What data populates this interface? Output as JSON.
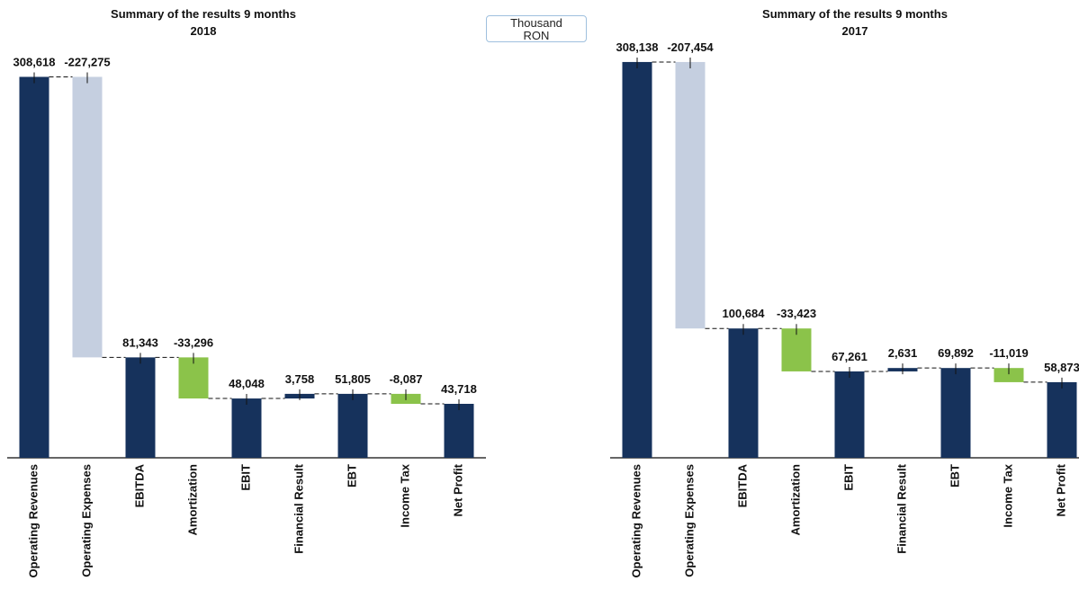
{
  "unit": "Thousand RON",
  "chart_data": [
    {
      "type": "waterfall",
      "title": "Summary of the results 9 months",
      "subtitle": "2018",
      "categories": [
        "Operating Revenues",
        "Operating Expenses",
        "EBITDA",
        "Amortization",
        "EBIT",
        "Financial Result",
        "EBT",
        "Income Tax",
        "Net Profit"
      ],
      "values": [
        308618,
        -227275,
        81343,
        -33296,
        48048,
        3758,
        51805,
        -8087,
        43718
      ],
      "value_labels": [
        "308,618",
        "-227,275",
        "81,343",
        "-33,296",
        "48,048",
        "3,758",
        "51,805",
        "-8,087",
        "43,718"
      ],
      "totals": [
        true,
        false,
        true,
        false,
        true,
        false,
        true,
        false,
        true
      ],
      "colors": [
        "#16325c",
        "#c5cfe0",
        "#16325c",
        "#8bc34a",
        "#16325c",
        "#16325c",
        "#16325c",
        "#8bc34a",
        "#16325c"
      ],
      "ylim": [
        0,
        333000
      ]
    },
    {
      "type": "waterfall",
      "title": "Summary of the results 9 months",
      "subtitle": "2017",
      "categories": [
        "Operating Revenues",
        "Operating Expenses",
        "EBITDA",
        "Amortization",
        "EBIT",
        "Financial Result",
        "EBT",
        "Income Tax",
        "Net  Profit"
      ],
      "values": [
        308138,
        -207454,
        100684,
        -33423,
        67261,
        2631,
        69892,
        -11019,
        58873
      ],
      "value_labels": [
        "308,138",
        "-207,454",
        "100,684",
        "-33,423",
        "67,261",
        "2,631",
        "69,892",
        "-11,019",
        "58,873"
      ],
      "totals": [
        true,
        false,
        true,
        false,
        true,
        false,
        true,
        false,
        true
      ],
      "colors": [
        "#16325c",
        "#c5cfe0",
        "#16325c",
        "#8bc34a",
        "#16325c",
        "#16325c",
        "#16325c",
        "#8bc34a",
        "#16325c"
      ],
      "ylim": [
        0,
        320000
      ]
    }
  ]
}
